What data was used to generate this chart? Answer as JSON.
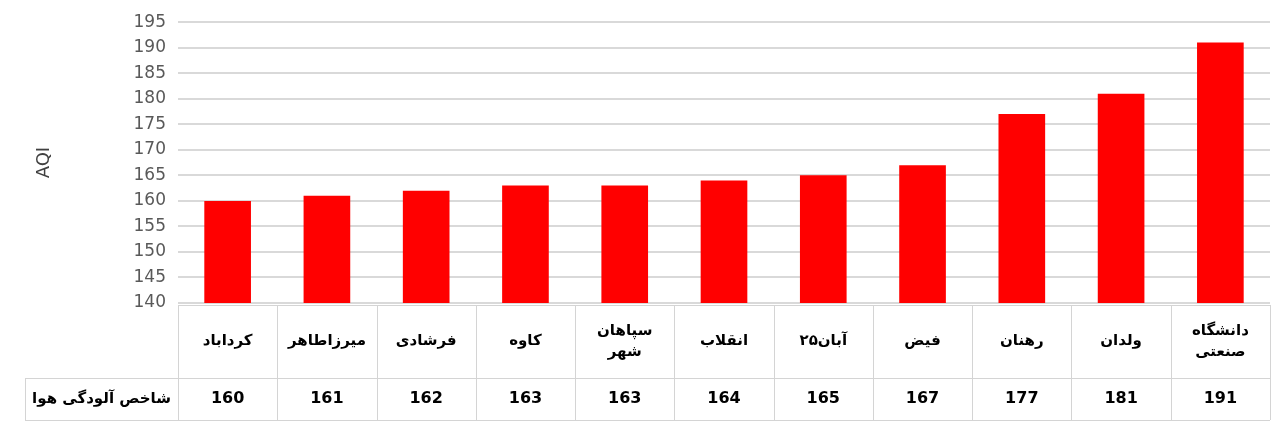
{
  "chart_data": {
    "type": "bar",
    "ylabel": "AQI",
    "categories": [
      "کرداباد",
      "میرزاطاهر",
      "فرشادی",
      "کاوه",
      "سپاهان شهر",
      "انقلاب",
      "۲۵آبان",
      "فیض",
      "رهنان",
      "ولدان",
      "دانشگاه صنعتی"
    ],
    "series": [
      {
        "name": "شاخص آلودگی هوا",
        "color": "#ff0000",
        "values": [
          160,
          161,
          162,
          163,
          163,
          164,
          165,
          167,
          177,
          181,
          191
        ]
      }
    ],
    "ylim": [
      140,
      195
    ],
    "yticks": [
      140,
      145,
      150,
      155,
      160,
      165,
      170,
      175,
      180,
      185,
      190,
      195
    ],
    "grid": "y",
    "data_labels": true
  }
}
